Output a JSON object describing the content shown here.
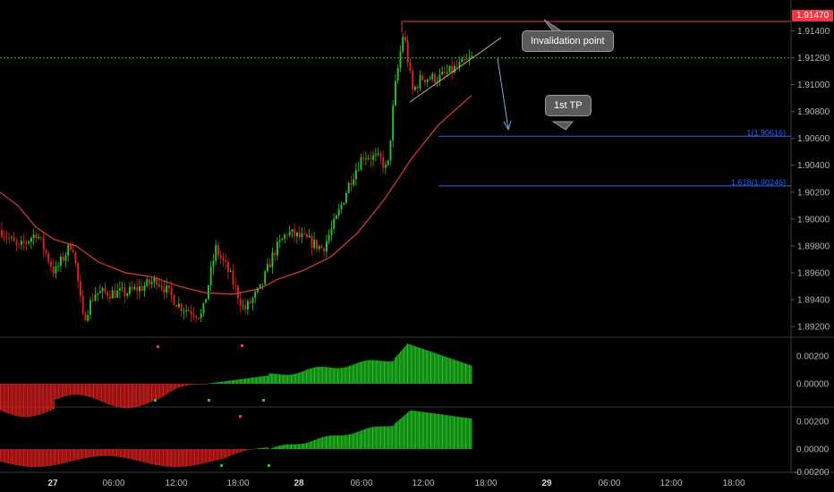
{
  "chart_data": [
    {
      "type": "candlestick",
      "panel": "price",
      "y_ticks": [
        "1.91400",
        "1.91200",
        "1.91000",
        "1.90800",
        "1.90600",
        "1.90400",
        "1.90200",
        "1.90000",
        "1.89800",
        "1.89600",
        "1.89400",
        "1.89200"
      ],
      "ylim": [
        1.8912,
        1.9163
      ],
      "last_price": "1.91470",
      "fib_levels": [
        {
          "label": "1(1.90616)",
          "value": 1.90616
        },
        {
          "label": "1.618(1.90246)",
          "value": 1.90246
        }
      ],
      "resistance_level": 1.9147,
      "current_level": 1.912,
      "annotations": [
        "Invalidation point",
        "1st TP"
      ],
      "moving_average_color": "#e53935",
      "up_color": "#26c626",
      "down_color": "#e02020"
    },
    {
      "type": "histogram",
      "panel": "oscillator-1",
      "y_ticks": [
        "0.00200",
        "0.00000"
      ]
    },
    {
      "type": "histogram",
      "panel": "oscillator-2",
      "y_ticks": [
        "0.00200",
        "0.00000",
        "-0.00200"
      ]
    }
  ],
  "x_ticks": [
    {
      "label": "27",
      "bold": true
    },
    {
      "label": "06:00",
      "bold": false
    },
    {
      "label": "12:00",
      "bold": false
    },
    {
      "label": "18:00",
      "bold": false
    },
    {
      "label": "28",
      "bold": true
    },
    {
      "label": "06:00",
      "bold": false
    },
    {
      "label": "12:00",
      "bold": false
    },
    {
      "label": "18:00",
      "bold": false
    },
    {
      "label": "29",
      "bold": true
    },
    {
      "label": "06:00",
      "bold": false
    },
    {
      "label": "12:00",
      "bold": false
    },
    {
      "label": "18:00",
      "bold": false
    }
  ],
  "callouts": {
    "invalidation": "Invalidation point",
    "tp": "1st TP"
  },
  "price_tag": "1.91470"
}
